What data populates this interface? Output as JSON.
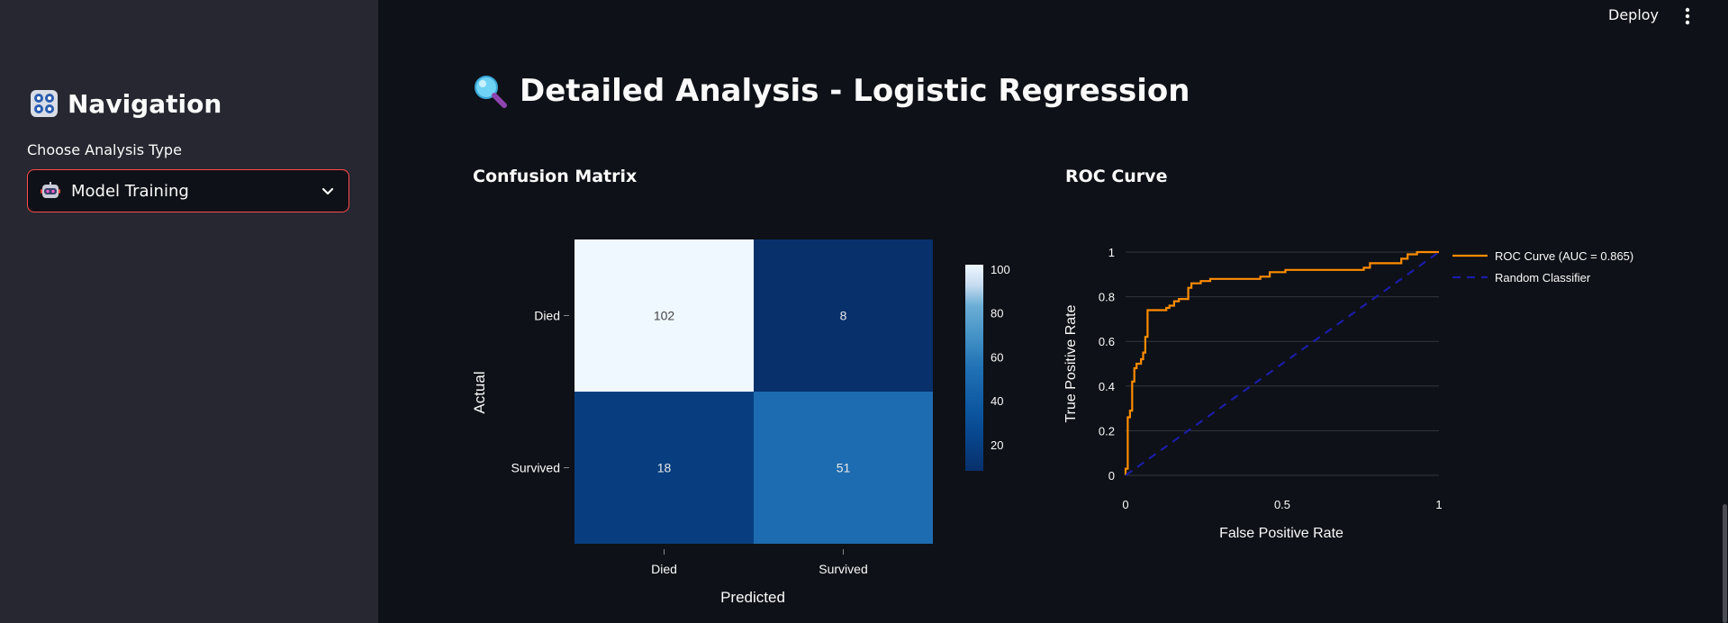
{
  "sidebar": {
    "nav_title": "Navigation",
    "choose_label": "Choose Analysis Type",
    "select_value": "Model Training"
  },
  "header": {
    "deploy_label": "Deploy"
  },
  "main": {
    "title": "Detailed Analysis - Logistic Regression"
  },
  "icons": {
    "nav": "control-knobs-icon",
    "select": "robot-icon",
    "title": "magnifier-icon",
    "chevron": "chevron-down-icon",
    "menu": "kebab-menu-icon"
  },
  "colors": {
    "background": "#0e1117",
    "sidebar": "#262730",
    "accent_border": "#ff4b4b",
    "roc_line": "#ff8c00",
    "random_line": "#1c1ca6"
  },
  "chart_data": [
    {
      "type": "heatmap",
      "title": "Confusion Matrix",
      "xlabel": "Predicted",
      "ylabel": "Actual",
      "x_categories": [
        "Died",
        "Survived"
      ],
      "y_categories": [
        "Died",
        "Survived"
      ],
      "z": [
        [
          102,
          8
        ],
        [
          18,
          51
        ]
      ],
      "colorscale": "Blues",
      "colorbar_ticks": [
        20,
        40,
        60,
        80,
        100
      ]
    },
    {
      "type": "line",
      "title": "ROC Curve",
      "xlabel": "False Positive Rate",
      "ylabel": "True Positive Rate",
      "xlim": [
        0,
        1
      ],
      "ylim": [
        0,
        1
      ],
      "x_ticks": [
        "0",
        "0.5",
        "1"
      ],
      "y_ticks": [
        "0",
        "0.2",
        "0.4",
        "0.6",
        "0.8",
        "1"
      ],
      "grid": true,
      "legend_position": "right",
      "series": [
        {
          "name": "ROC Curve (AUC = 0.865)",
          "color": "#ff8c00",
          "dash": "solid",
          "points": [
            [
              0,
              0
            ],
            [
              0,
              0.03
            ],
            [
              0.007,
              0.03
            ],
            [
              0.007,
              0.26
            ],
            [
              0.014,
              0.26
            ],
            [
              0.014,
              0.29
            ],
            [
              0.021,
              0.29
            ],
            [
              0.021,
              0.42
            ],
            [
              0.028,
              0.42
            ],
            [
              0.028,
              0.48
            ],
            [
              0.035,
              0.48
            ],
            [
              0.035,
              0.5
            ],
            [
              0.049,
              0.5
            ],
            [
              0.049,
              0.52
            ],
            [
              0.056,
              0.52
            ],
            [
              0.056,
              0.55
            ],
            [
              0.063,
              0.55
            ],
            [
              0.063,
              0.62
            ],
            [
              0.07,
              0.62
            ],
            [
              0.07,
              0.74
            ],
            [
              0.13,
              0.74
            ],
            [
              0.13,
              0.75
            ],
            [
              0.14,
              0.75
            ],
            [
              0.14,
              0.76
            ],
            [
              0.155,
              0.76
            ],
            [
              0.155,
              0.78
            ],
            [
              0.17,
              0.78
            ],
            [
              0.17,
              0.79
            ],
            [
              0.2,
              0.79
            ],
            [
              0.2,
              0.84
            ],
            [
              0.21,
              0.84
            ],
            [
              0.21,
              0.86
            ],
            [
              0.24,
              0.86
            ],
            [
              0.24,
              0.87
            ],
            [
              0.27,
              0.87
            ],
            [
              0.27,
              0.88
            ],
            [
              0.43,
              0.88
            ],
            [
              0.43,
              0.89
            ],
            [
              0.46,
              0.89
            ],
            [
              0.46,
              0.91
            ],
            [
              0.51,
              0.91
            ],
            [
              0.51,
              0.92
            ],
            [
              0.76,
              0.92
            ],
            [
              0.76,
              0.93
            ],
            [
              0.78,
              0.93
            ],
            [
              0.78,
              0.95
            ],
            [
              0.88,
              0.95
            ],
            [
              0.88,
              0.97
            ],
            [
              0.9,
              0.97
            ],
            [
              0.9,
              0.99
            ],
            [
              0.93,
              0.99
            ],
            [
              0.93,
              1.0
            ],
            [
              1.0,
              1.0
            ]
          ]
        },
        {
          "name": "Random Classifier",
          "color": "#1c1ca6",
          "dash": "dash",
          "points": [
            [
              0,
              0
            ],
            [
              1,
              1
            ]
          ]
        }
      ]
    }
  ]
}
